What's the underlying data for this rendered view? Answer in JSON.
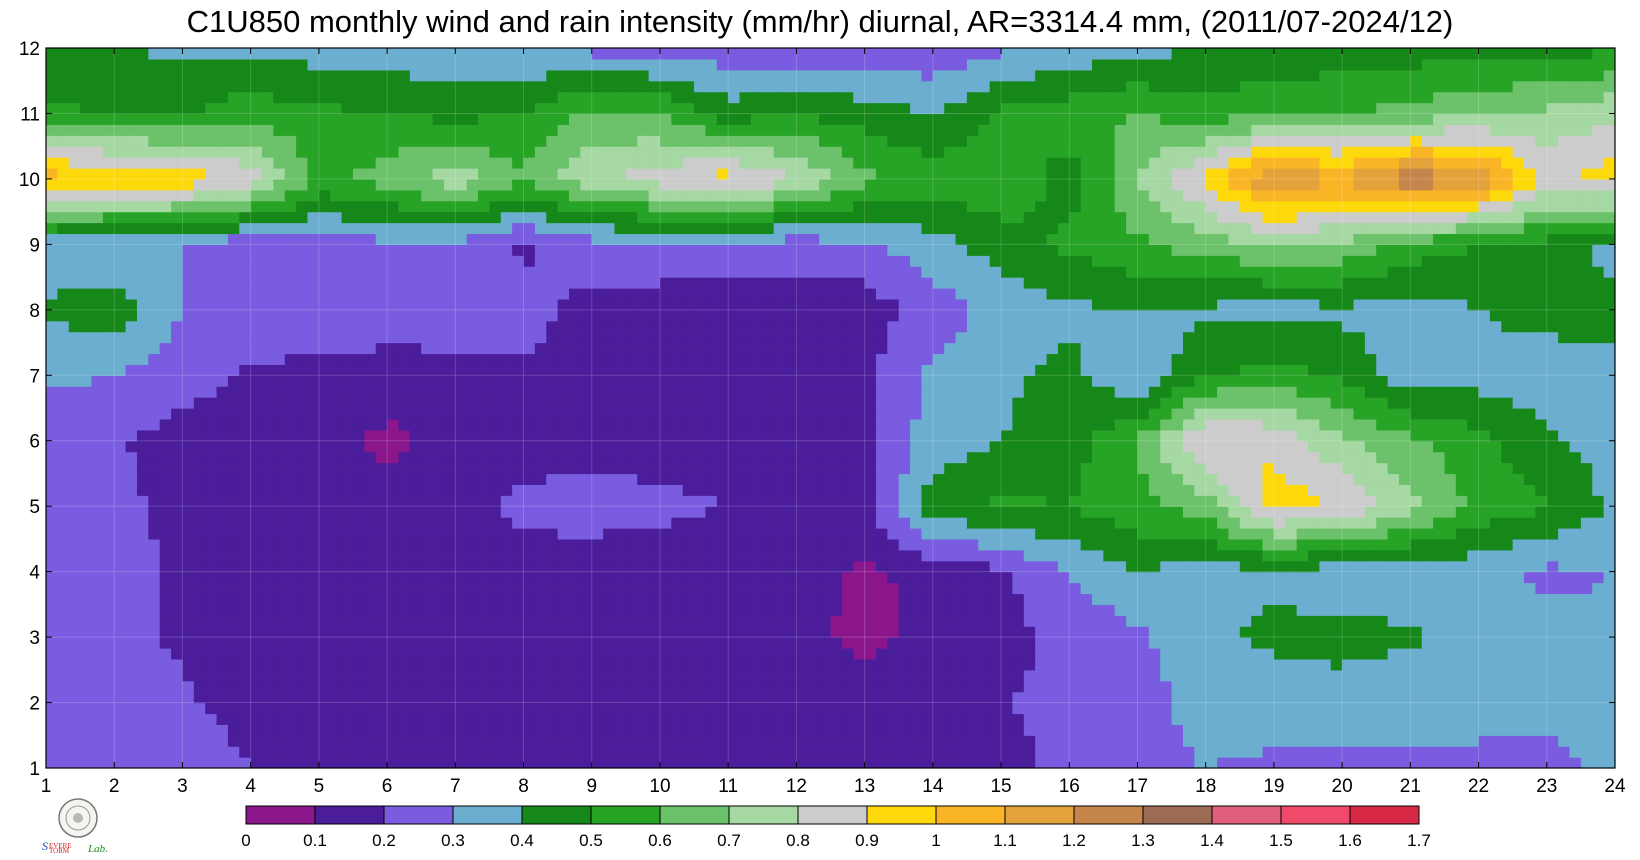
{
  "chart_data": {
    "type": "heatmap",
    "subtype": "filled-contour",
    "title": "C1U850 monthly wind and rain intensity (mm/hr) diurnal, AR=3314.4 mm, (2011/07-2024/12)",
    "xlabel": "",
    "ylabel": "",
    "x": [
      1,
      2,
      3,
      4,
      5,
      6,
      7,
      8,
      9,
      10,
      11,
      12,
      13,
      14,
      15,
      16,
      17,
      18,
      19,
      20,
      21,
      22,
      23,
      24
    ],
    "y": [
      1,
      2,
      3,
      4,
      5,
      6,
      7,
      8,
      9,
      10,
      11,
      12
    ],
    "xlim": [
      1,
      24
    ],
    "ylim": [
      1,
      12
    ],
    "x_ticks": [
      "1",
      "2",
      "3",
      "4",
      "5",
      "6",
      "7",
      "8",
      "9",
      "10",
      "11",
      "12",
      "13",
      "14",
      "15",
      "16",
      "17",
      "18",
      "19",
      "20",
      "21",
      "22",
      "23",
      "24"
    ],
    "y_ticks": [
      "1",
      "2",
      "3",
      "4",
      "5",
      "6",
      "7",
      "8",
      "9",
      "10",
      "11",
      "12"
    ],
    "grid": true,
    "z": [
      [
        0.22,
        0.25,
        0.27,
        0.2,
        0.18,
        0.17,
        0.18,
        0.2,
        0.17,
        0.16,
        0.15,
        0.15,
        0.14,
        0.15,
        0.17,
        0.22,
        0.26,
        0.3,
        0.28,
        0.27,
        0.28,
        0.3,
        0.28,
        0.32
      ],
      [
        0.27,
        0.3,
        0.22,
        0.15,
        0.15,
        0.15,
        0.16,
        0.17,
        0.15,
        0.14,
        0.13,
        0.14,
        0.14,
        0.15,
        0.2,
        0.22,
        0.25,
        0.35,
        0.35,
        0.36,
        0.34,
        0.3,
        0.32,
        0.34
      ],
      [
        0.25,
        0.23,
        0.18,
        0.15,
        0.14,
        0.14,
        0.14,
        0.14,
        0.13,
        0.13,
        0.12,
        0.12,
        0.08,
        0.12,
        0.17,
        0.22,
        0.28,
        0.38,
        0.42,
        0.43,
        0.41,
        0.36,
        0.33,
        0.32
      ],
      [
        0.22,
        0.22,
        0.19,
        0.16,
        0.14,
        0.15,
        0.15,
        0.15,
        0.15,
        0.14,
        0.1,
        0.14,
        0.08,
        0.13,
        0.18,
        0.3,
        0.4,
        0.35,
        0.38,
        0.34,
        0.35,
        0.33,
        0.28,
        0.3
      ],
      [
        0.3,
        0.22,
        0.18,
        0.16,
        0.15,
        0.16,
        0.16,
        0.23,
        0.24,
        0.23,
        0.2,
        0.18,
        0.17,
        0.45,
        0.52,
        0.5,
        0.57,
        0.65,
        0.95,
        0.9,
        0.72,
        0.58,
        0.5,
        0.38
      ],
      [
        0.22,
        0.21,
        0.16,
        0.15,
        0.15,
        0.07,
        0.14,
        0.15,
        0.16,
        0.15,
        0.14,
        0.14,
        0.17,
        0.35,
        0.4,
        0.45,
        0.6,
        0.92,
        0.88,
        0.72,
        0.62,
        0.53,
        0.42,
        0.35
      ],
      [
        0.32,
        0.3,
        0.24,
        0.19,
        0.17,
        0.17,
        0.18,
        0.18,
        0.17,
        0.16,
        0.15,
        0.16,
        0.19,
        0.32,
        0.38,
        0.43,
        0.3,
        0.48,
        0.55,
        0.48,
        0.33,
        0.36,
        0.34,
        0.35
      ],
      [
        0.42,
        0.45,
        0.3,
        0.26,
        0.25,
        0.24,
        0.23,
        0.24,
        0.16,
        0.15,
        0.14,
        0.15,
        0.14,
        0.25,
        0.33,
        0.38,
        0.4,
        0.38,
        0.36,
        0.38,
        0.35,
        0.4,
        0.44,
        0.45
      ],
      [
        0.32,
        0.31,
        0.3,
        0.22,
        0.26,
        0.27,
        0.28,
        0.18,
        0.26,
        0.27,
        0.26,
        0.25,
        0.28,
        0.36,
        0.45,
        0.52,
        0.58,
        0.65,
        0.7,
        0.68,
        0.56,
        0.5,
        0.47,
        0.35
      ],
      [
        1.05,
        1.0,
        0.98,
        0.86,
        0.57,
        0.65,
        0.76,
        0.62,
        0.78,
        0.85,
        0.95,
        0.8,
        0.63,
        0.55,
        0.58,
        0.45,
        0.7,
        0.92,
        1.22,
        1.1,
        1.28,
        1.2,
        0.88,
        0.95
      ],
      [
        0.52,
        0.5,
        0.48,
        0.56,
        0.52,
        0.5,
        0.47,
        0.5,
        0.63,
        0.6,
        0.44,
        0.5,
        0.45,
        0.4,
        0.52,
        0.56,
        0.6,
        0.55,
        0.58,
        0.6,
        0.63,
        0.68,
        0.72,
        0.78
      ],
      [
        0.42,
        0.4,
        0.38,
        0.38,
        0.35,
        0.34,
        0.33,
        0.31,
        0.27,
        0.25,
        0.24,
        0.23,
        0.23,
        0.22,
        0.28,
        0.33,
        0.37,
        0.4,
        0.42,
        0.44,
        0.45,
        0.46,
        0.47,
        0.48
      ]
    ],
    "colorbar": {
      "levels": [
        0,
        0.1,
        0.2,
        0.3,
        0.4,
        0.5,
        0.6,
        0.7,
        0.8,
        0.9,
        1,
        1.1,
        1.2,
        1.3,
        1.4,
        1.5,
        1.6,
        1.7
      ],
      "tick_labels": [
        "0",
        "0.1",
        "0.2",
        "0.3",
        "0.4",
        "0.5",
        "0.6",
        "0.7",
        "0.8",
        "0.9",
        "1",
        "1.1",
        "1.2",
        "1.3",
        "1.4",
        "1.5",
        "1.6",
        "1.7"
      ],
      "colors": [
        "#8b168c",
        "#4b1d9b",
        "#7a5ce0",
        "#6baed0",
        "#16881a",
        "#27a326",
        "#6cc26a",
        "#a5d8a2",
        "#cccccc",
        "#fdd90b",
        "#f9b525",
        "#e4a33a",
        "#c6854b",
        "#9c6b54",
        "#e05f7e",
        "#f04a6b",
        "#d72845"
      ],
      "placement": "bottom"
    },
    "contour_line_color": "#f5a623"
  },
  "logo": {
    "text": "Severe Storm Lab.",
    "colors": {
      "severe": "#1e3fbf",
      "storm": "#d81e1e",
      "lab": "#1e8f1e"
    }
  }
}
